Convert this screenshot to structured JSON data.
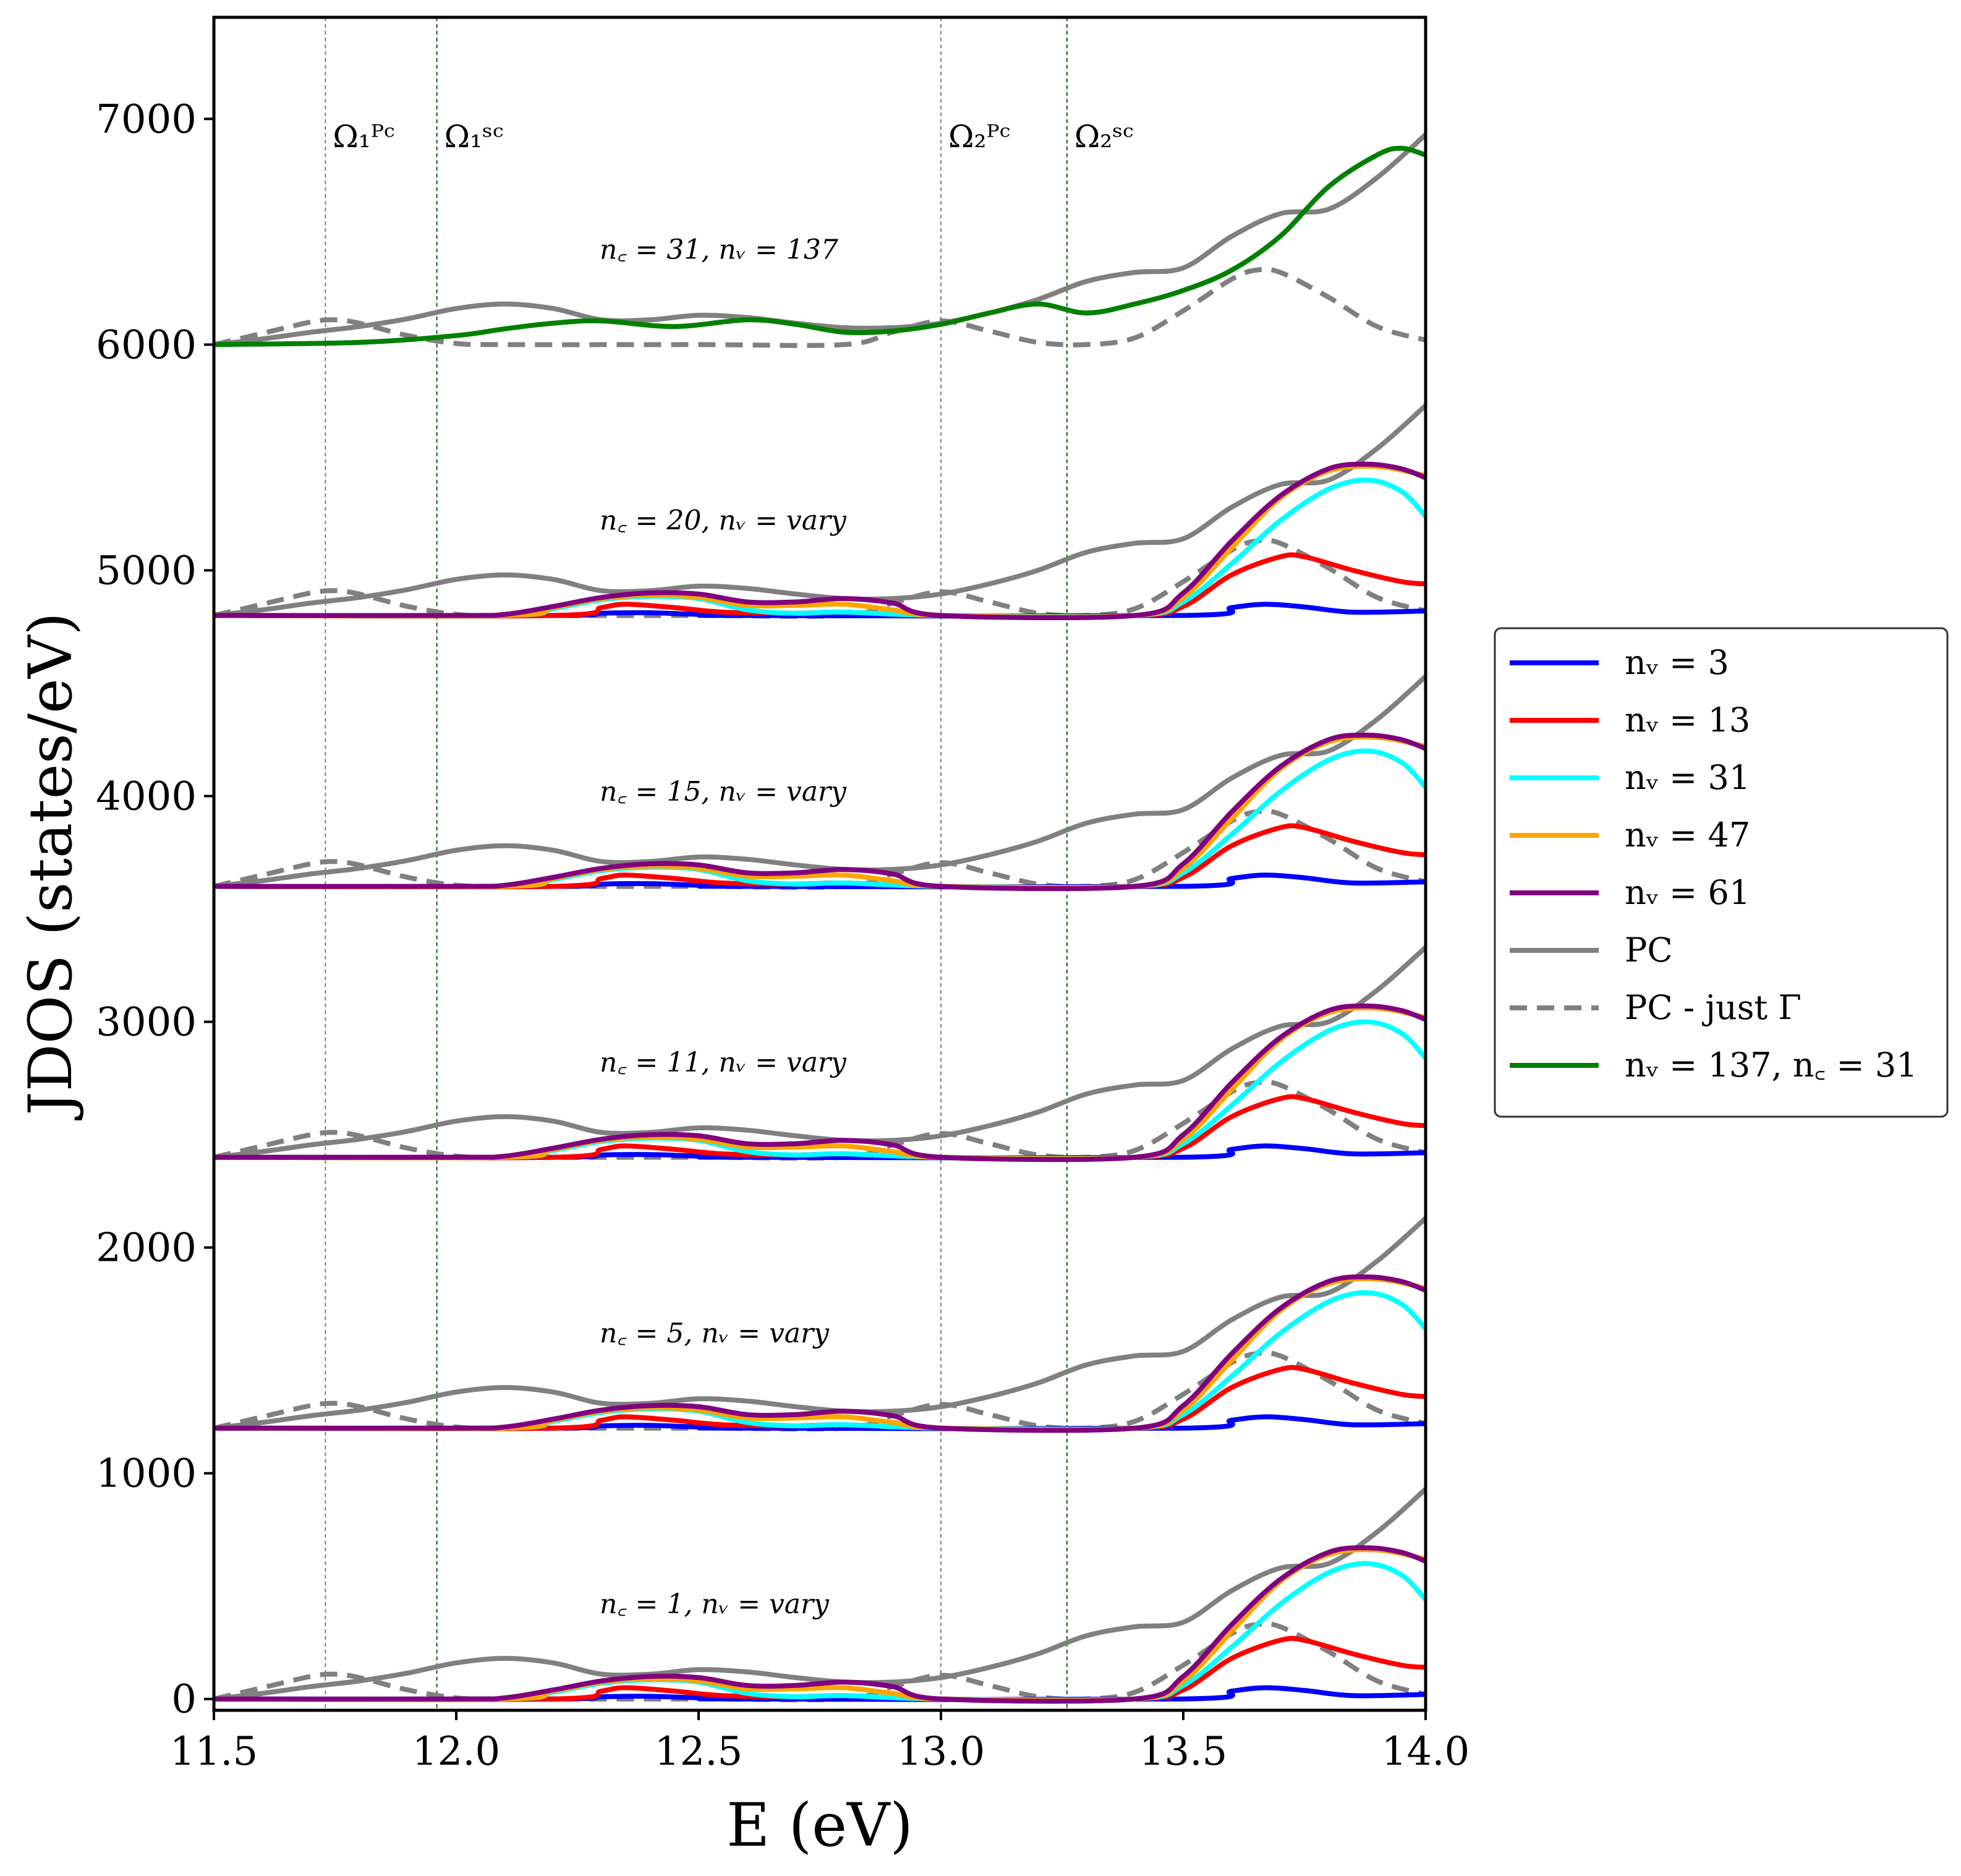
{
  "chart_data": {
    "type": "line",
    "xlabel": "E (eV)",
    "ylabel": "JDOS (states/eV)",
    "xlim": [
      11.5,
      14.0
    ],
    "ylim": [
      -50,
      7450
    ],
    "xticks": [
      11.5,
      12.0,
      12.5,
      13.0,
      13.5,
      14.0
    ],
    "xtick_labels": [
      "11.5",
      "12.0",
      "12.5",
      "13.0",
      "13.5",
      "14.0"
    ],
    "yticks": [
      0,
      1000,
      2000,
      3000,
      4000,
      5000,
      6000,
      7000
    ],
    "ytick_labels": [
      "0",
      "1000",
      "2000",
      "3000",
      "4000",
      "5000",
      "6000",
      "7000"
    ],
    "vlines": [
      {
        "x": 11.73,
        "label": "Ω₁ᴾᶜ",
        "color": "#808080"
      },
      {
        "x": 11.96,
        "label": "Ω₁ˢᶜ",
        "color": "#006400"
      },
      {
        "x": 13.0,
        "label": "Ω₂ᴾᶜ",
        "color": "#808080"
      },
      {
        "x": 13.26,
        "label": "Ω₂ˢᶜ",
        "color": "#006400"
      }
    ],
    "legend": {
      "placement": "center-right",
      "entries": [
        {
          "label": "nᵥ = 3",
          "color": "#0000ff",
          "style": "solid"
        },
        {
          "label": "nᵥ = 13",
          "color": "#ff0000",
          "style": "solid"
        },
        {
          "label": "nᵥ = 31",
          "color": "#00ffff",
          "style": "solid"
        },
        {
          "label": "nᵥ = 47",
          "color": "#ffa500",
          "style": "solid"
        },
        {
          "label": "nᵥ = 61",
          "color": "#800080",
          "style": "solid"
        },
        {
          "label": "PC",
          "color": "#808080",
          "style": "solid"
        },
        {
          "label": "PC - just Γ",
          "color": "#808080",
          "style": "dashed"
        },
        {
          "label": "nᵥ = 137, n꜀ = 31",
          "color": "#008000",
          "style": "solid"
        }
      ]
    },
    "panels": [
      {
        "offset": 0,
        "annotation": "n꜀ = 1, nᵥ = vary",
        "nc": 1
      },
      {
        "offset": 1200,
        "annotation": "n꜀ = 5, nᵥ = vary",
        "nc": 5
      },
      {
        "offset": 2400,
        "annotation": "n꜀ = 11, nᵥ = vary",
        "nc": 11
      },
      {
        "offset": 3600,
        "annotation": "n꜀ = 15, nᵥ = vary",
        "nc": 15
      },
      {
        "offset": 4800,
        "annotation": "n꜀ = 20, nᵥ = vary",
        "nc": 20
      },
      {
        "offset": 6000,
        "annotation": "n꜀ = 31, nᵥ = 137",
        "nc": 31
      }
    ],
    "pc_full": {
      "x": [
        11.5,
        11.6,
        11.7,
        11.8,
        11.9,
        12.0,
        12.1,
        12.2,
        12.3,
        12.4,
        12.5,
        12.6,
        12.7,
        12.8,
        12.9,
        13.0,
        13.1,
        13.2,
        13.3,
        13.4,
        13.5,
        13.6,
        13.7,
        13.8,
        13.9,
        14.0
      ],
      "y": [
        0,
        25,
        55,
        80,
        115,
        160,
        180,
        160,
        110,
        110,
        130,
        120,
        95,
        75,
        75,
        95,
        140,
        200,
        280,
        320,
        340,
        480,
        580,
        600,
        740,
        930
      ]
    },
    "pc_gamma": {
      "x": [
        11.5,
        11.6,
        11.7,
        11.75,
        11.8,
        11.9,
        12.0,
        12.1,
        12.5,
        12.8,
        12.9,
        13.0,
        13.1,
        13.2,
        13.3,
        13.4,
        13.5,
        13.6,
        13.65,
        13.7,
        13.8,
        13.9,
        14.0
      ],
      "y": [
        0,
        50,
        100,
        110,
        95,
        40,
        5,
        0,
        0,
        0,
        55,
        105,
        60,
        10,
        0,
        30,
        150,
        290,
        330,
        320,
        210,
        80,
        20
      ]
    },
    "series": [
      {
        "name": "nv=3",
        "color": "#0000ff",
        "offsets": [
          0,
          1200,
          2400,
          3600,
          4800
        ],
        "x": [
          11.5,
          12.2,
          12.3,
          12.4,
          12.5,
          12.6,
          13.5,
          13.6,
          13.67,
          13.75,
          13.85,
          14.0
        ],
        "y": [
          0,
          0,
          10,
          12,
          5,
          0,
          0,
          35,
          50,
          38,
          15,
          20
        ]
      },
      {
        "name": "nv=13",
        "color": "#ff0000",
        "offsets": [
          0,
          1200,
          2400,
          3600,
          4800
        ],
        "x": [
          11.5,
          12.2,
          12.3,
          12.35,
          12.45,
          12.55,
          12.7,
          12.8,
          13.0,
          13.4,
          13.5,
          13.6,
          13.7,
          13.75,
          13.85,
          13.95,
          14.0
        ],
        "y": [
          0,
          0,
          35,
          50,
          35,
          15,
          10,
          15,
          0,
          0,
          40,
          180,
          260,
          260,
          200,
          150,
          140
        ]
      },
      {
        "name": "nv=31",
        "color": "#00ffff",
        "offsets": [
          0,
          1200,
          2400,
          3600,
          4800
        ],
        "x": [
          11.5,
          12.1,
          12.2,
          12.3,
          12.4,
          12.5,
          12.6,
          12.7,
          12.8,
          13.0,
          13.4,
          13.5,
          13.6,
          13.7,
          13.8,
          13.88,
          13.95,
          14.0
        ],
        "y": [
          0,
          0,
          30,
          70,
          85,
          75,
          25,
          10,
          15,
          0,
          0,
          60,
          230,
          420,
          560,
          600,
          550,
          440
        ]
      },
      {
        "name": "nv=47",
        "color": "#ffa500",
        "offsets": [
          0,
          1200,
          2400,
          3600,
          4800
        ],
        "x": [
          11.5,
          12.1,
          12.2,
          12.3,
          12.4,
          12.5,
          12.6,
          12.7,
          12.8,
          12.9,
          13.0,
          13.4,
          13.5,
          13.6,
          13.7,
          13.8,
          13.9,
          14.0
        ],
        "y": [
          0,
          0,
          35,
          75,
          90,
          80,
          45,
          45,
          50,
          25,
          0,
          0,
          80,
          300,
          520,
          640,
          660,
          620
        ]
      },
      {
        "name": "nv=61",
        "color": "#800080",
        "offsets": [
          0,
          1200,
          2400,
          3600,
          4800
        ],
        "x": [
          11.5,
          12.0,
          12.1,
          12.2,
          12.3,
          12.4,
          12.5,
          12.6,
          12.7,
          12.8,
          12.9,
          13.0,
          13.4,
          13.5,
          13.6,
          13.7,
          13.8,
          13.88,
          13.95,
          14.0
        ],
        "y": [
          0,
          0,
          5,
          40,
          80,
          100,
          95,
          60,
          60,
          75,
          55,
          0,
          0,
          100,
          330,
          530,
          650,
          670,
          650,
          610
        ]
      },
      {
        "name": "nv=137, nc=31",
        "color": "#008000",
        "offsets": [
          6000
        ],
        "x": [
          11.5,
          11.8,
          12.0,
          12.1,
          12.2,
          12.3,
          12.45,
          12.6,
          12.7,
          12.8,
          12.9,
          13.0,
          13.1,
          13.2,
          13.3,
          13.4,
          13.5,
          13.6,
          13.7,
          13.8,
          13.9,
          13.95,
          14.0
        ],
        "y": [
          0,
          10,
          40,
          70,
          95,
          105,
          80,
          110,
          90,
          55,
          60,
          90,
          140,
          180,
          140,
          180,
          240,
          330,
          480,
          700,
          840,
          870,
          840
        ]
      }
    ]
  }
}
